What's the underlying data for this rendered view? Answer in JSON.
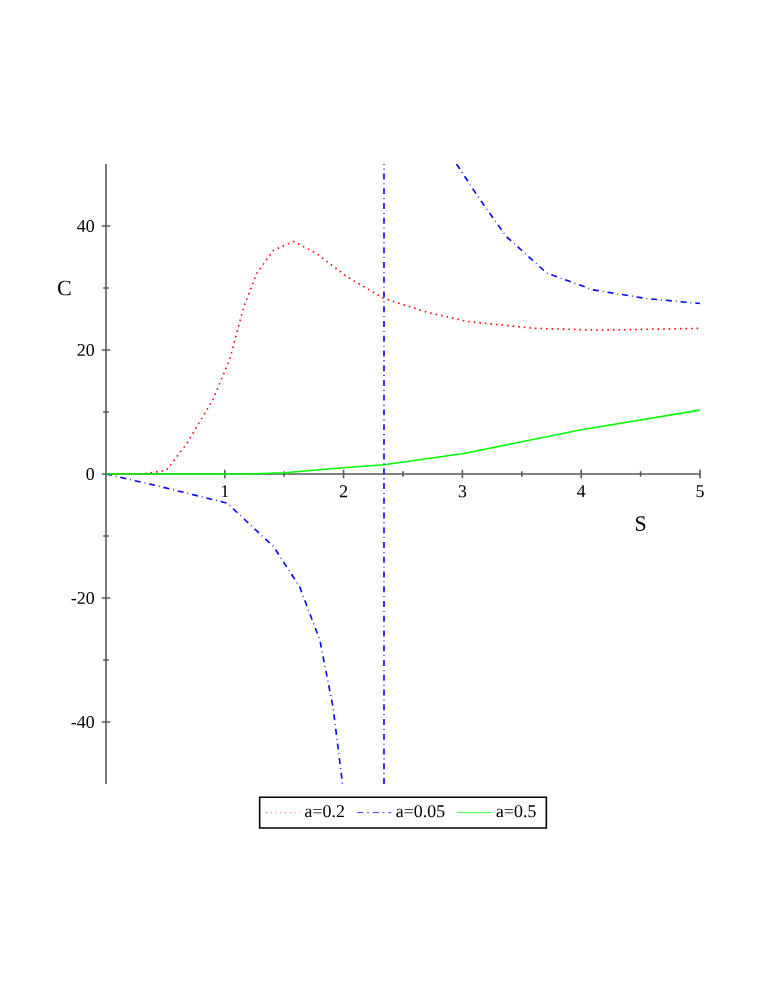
{
  "chart_data": {
    "type": "line",
    "xlabel": "S",
    "ylabel": "C",
    "xlim": [
      0,
      5
    ],
    "ylim": [
      -50,
      50
    ],
    "xticks": [
      1,
      2,
      3,
      4,
      5
    ],
    "yticks": [
      -40,
      -20,
      0,
      20,
      40
    ],
    "grid": false,
    "legend": "bottom",
    "series": [
      {
        "name": "a=0.2",
        "color": "#ff0000",
        "line_style": "dotted",
        "x": [
          0,
          0.3,
          0.51,
          0.68,
          0.9,
          1.04,
          1.16,
          1.27,
          1.41,
          1.58,
          1.77,
          2.03,
          2.33,
          2.7,
          3.04,
          3.6,
          4.16,
          5
        ],
        "values": [
          0,
          0,
          0.6,
          4.9,
          12,
          18.4,
          27,
          32.4,
          36.1,
          37.5,
          35.6,
          31.8,
          28.4,
          26.1,
          24.6,
          23.5,
          23.2,
          23.5
        ]
      },
      {
        "name": "a=0.05",
        "color": "#0000ff",
        "line_style": "dashdot",
        "x": [
          0,
          0.45,
          1.02,
          1.41,
          1.63,
          1.8,
          1.91,
          1.98,
          1.99,
          null,
          2.95,
          3.15,
          3.37,
          3.71,
          4.1,
          4.55,
          5
        ],
        "values": [
          0,
          -2,
          -4.7,
          -11.7,
          -18.2,
          -26.8,
          -37.5,
          -48.3,
          -50,
          null,
          50,
          44.2,
          38.3,
          32.4,
          29.7,
          28.3,
          27.5
        ]
      },
      {
        "name": "a=0.5",
        "color": "#00ff00",
        "line_style": "solid",
        "x": [
          0,
          1.2,
          1.5,
          2,
          2.34,
          3.01,
          3.99,
          5
        ],
        "values": [
          0,
          0,
          0.2,
          1,
          1.5,
          3.3,
          7.1,
          10.3
        ]
      }
    ],
    "ref_lines": [
      {
        "axis": "x",
        "value": 2.34,
        "color": "#0000ff",
        "line_style": "dashdot"
      }
    ]
  }
}
